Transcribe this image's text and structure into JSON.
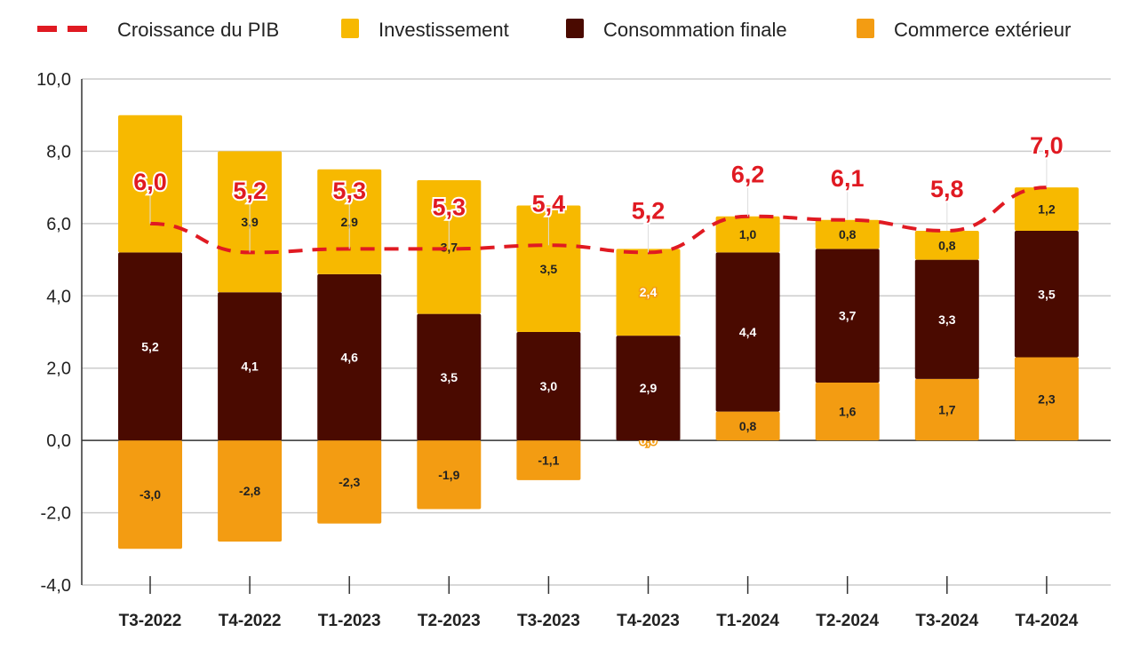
{
  "chart_data": {
    "type": "bar",
    "stacked": true,
    "categories": [
      "T3-2022",
      "T4-2022",
      "T1-2023",
      "T2-2023",
      "T3-2023",
      "T4-2023",
      "T1-2024",
      "T2-2024",
      "T3-2024",
      "T4-2024"
    ],
    "series": [
      {
        "name": "Commerce extérieur",
        "kind": "bar",
        "color": "#f39c12",
        "values": [
          -3.0,
          -2.8,
          -2.3,
          -1.9,
          -1.1,
          0.0,
          0.8,
          1.6,
          1.7,
          2.3
        ],
        "labels": [
          "-3,0",
          "-2,8",
          "-2,3",
          "-1,9",
          "-1,1",
          "0,0",
          "0,8",
          "1,6",
          "1,7",
          "2,3"
        ]
      },
      {
        "name": "Consommation finale",
        "kind": "bar",
        "color": "#4a0a00",
        "values": [
          5.2,
          4.1,
          4.6,
          3.5,
          3.0,
          2.9,
          4.4,
          3.7,
          3.3,
          3.5
        ],
        "labels": [
          "5,2",
          "4,1",
          "4,6",
          "3,5",
          "3,0",
          "2,9",
          "4,4",
          "3,7",
          "3,3",
          "3,5"
        ]
      },
      {
        "name": "Investissement",
        "kind": "bar",
        "color": "#f7b900",
        "values": [
          3.8,
          3.9,
          2.9,
          3.7,
          3.5,
          2.4,
          1.0,
          0.8,
          0.8,
          1.2
        ],
        "labels": [
          "",
          "3,9",
          "2,9",
          "3,7",
          "3,5",
          "2,4",
          "1,0",
          "0,8",
          "0,8",
          "1,2"
        ]
      },
      {
        "name": "Croissance du PIB",
        "kind": "line",
        "style": "dashed",
        "color": "#e01a22",
        "values": [
          6.0,
          5.2,
          5.3,
          5.3,
          5.4,
          5.2,
          6.2,
          6.1,
          5.8,
          7.0
        ],
        "labels": [
          "6,0",
          "5,2",
          "5,3",
          "5,3",
          "5,4",
          "5,2",
          "6,2",
          "6,1",
          "5,8",
          "7,0"
        ]
      }
    ],
    "legend_order": [
      "Croissance du PIB",
      "Investissement",
      "Consommation finale",
      "Commerce extérieur"
    ],
    "legend_placement": "top",
    "ylim": [
      -4,
      10
    ],
    "yticks": [
      "-4,0",
      "-2,0",
      "0,0",
      "2,0",
      "4,0",
      "6,0",
      "8,0",
      "10,0"
    ],
    "grid": true
  }
}
